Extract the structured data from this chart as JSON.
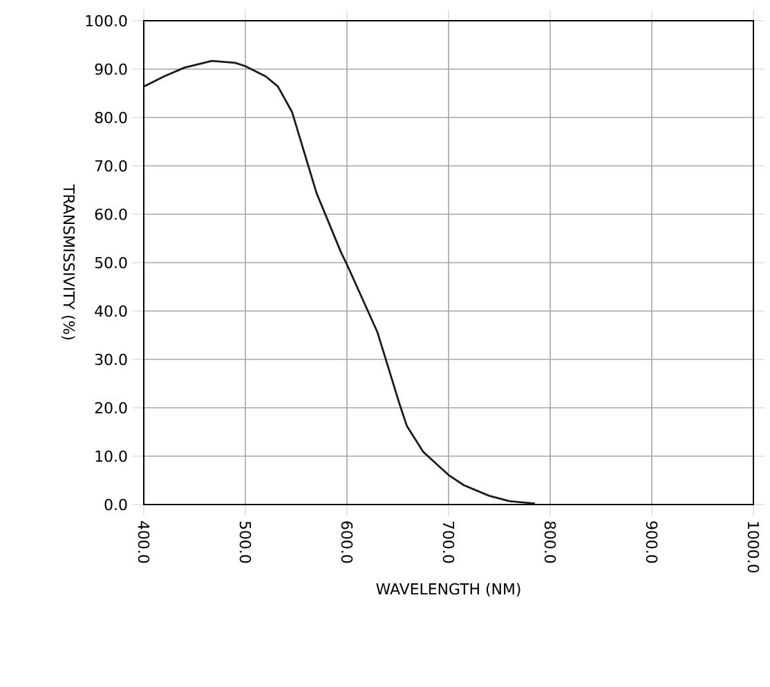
{
  "chart_data": {
    "type": "line",
    "xlabel": "WAVELENGTH  (NM)",
    "ylabel": "TRANSMISSIVITY  (%)",
    "x": [
      400,
      420,
      440,
      467,
      490,
      500,
      520,
      532,
      546,
      570,
      594,
      600,
      630,
      652,
      659,
      675,
      700,
      715,
      740,
      760,
      785
    ],
    "series": [
      {
        "color": "#1a1a1a",
        "values": [
          86.4,
          88.5,
          90.3,
          91.7,
          91.3,
          90.6,
          88.5,
          86.4,
          81.1,
          64.4,
          52.2,
          49.6,
          35.6,
          20.6,
          16.2,
          10.9,
          6.1,
          4.0,
          1.8,
          0.7,
          0.2
        ]
      }
    ],
    "xlim": [
      400,
      1000
    ],
    "ylim": [
      0,
      100
    ],
    "xticks": [
      {
        "value": 400,
        "label": "400.0"
      },
      {
        "value": 500,
        "label": "500.0"
      },
      {
        "value": 600,
        "label": "600.0"
      },
      {
        "value": 700,
        "label": "700.0"
      },
      {
        "value": 800,
        "label": "800.0"
      },
      {
        "value": 900,
        "label": "900.0"
      },
      {
        "value": 1000,
        "label": "1000.0"
      }
    ],
    "yticks": [
      {
        "value": 0,
        "label": "0.0"
      },
      {
        "value": 10,
        "label": "10.0"
      },
      {
        "value": 20,
        "label": "20.0"
      },
      {
        "value": 30,
        "label": "30.0"
      },
      {
        "value": 40,
        "label": "40.0"
      },
      {
        "value": 50,
        "label": "50.0"
      },
      {
        "value": 60,
        "label": "60.0"
      },
      {
        "value": 70,
        "label": "70.0"
      },
      {
        "value": 80,
        "label": "80.0"
      },
      {
        "value": 90,
        "label": "90.0"
      },
      {
        "value": 100,
        "label": "100.0"
      }
    ],
    "grid": true,
    "marker": "none",
    "line_style": "solid"
  }
}
